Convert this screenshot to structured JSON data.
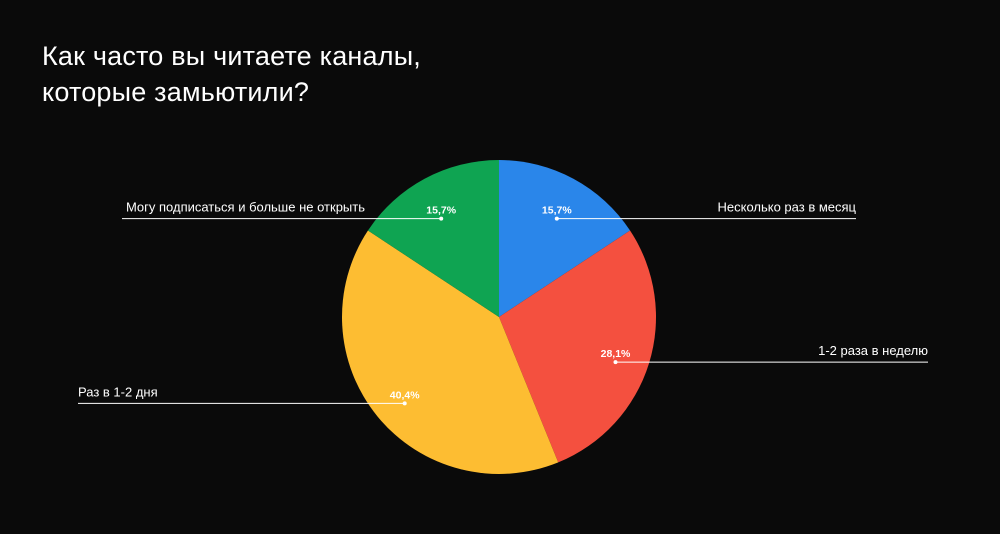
{
  "page": {
    "background": "#0a0a0a",
    "title_lines": [
      "Как часто вы читаете каналы,",
      "которые замьютили?"
    ]
  },
  "chart_data": {
    "type": "pie",
    "slices": [
      {
        "label": "Несколько раз в месяц",
        "value": 15.7,
        "display": "15,7%",
        "color": "#2a86ea"
      },
      {
        "label": "1-2 раза в неделю",
        "value": 28.1,
        "display": "28,1%",
        "color": "#f4503f"
      },
      {
        "label": "Раз в 1-2 дня",
        "value": 40.4,
        "display": "40,4%",
        "color": "#fdbd32"
      },
      {
        "label": "Могу подписаться и больше не открыть",
        "value": 15.7,
        "display": "15,7%",
        "color": "#0fa452"
      }
    ],
    "start_angle": "top",
    "direction": "clockwise",
    "legend": "callout-lines"
  }
}
